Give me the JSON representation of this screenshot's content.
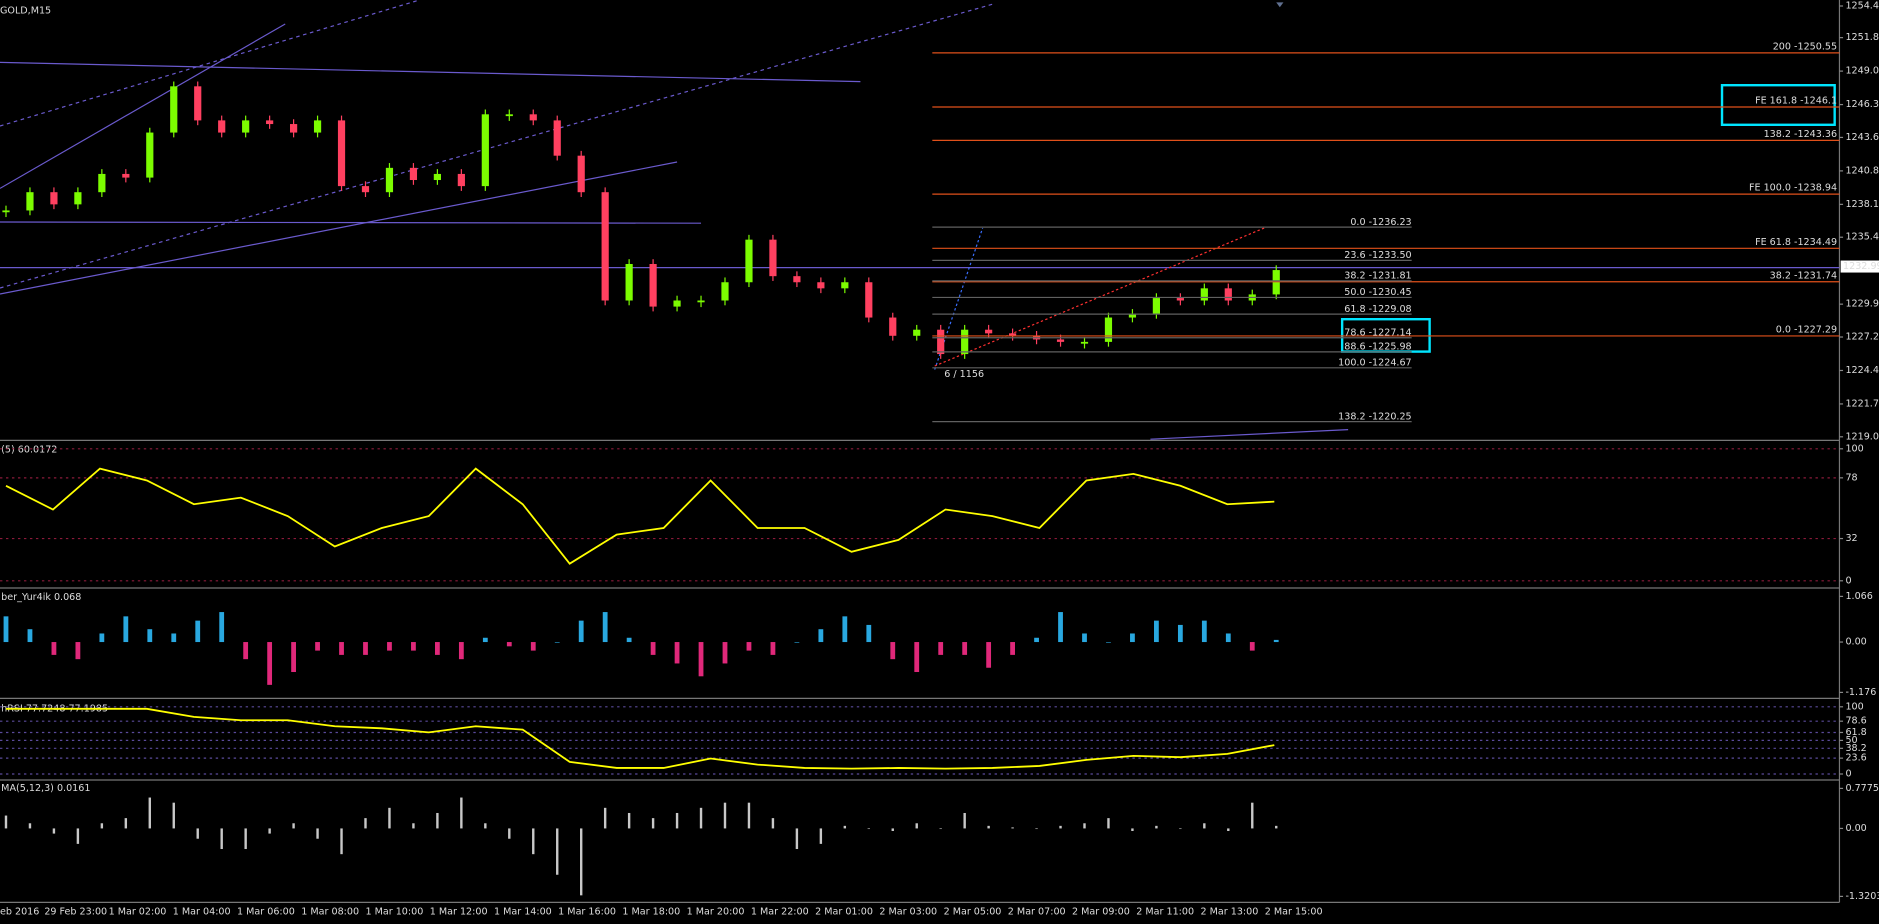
{
  "header": {
    "symbol": "GOLD,M15"
  },
  "main_chart": {
    "ylim": [
      1219,
      1254.4
    ],
    "yticks": [
      {
        "value": 1254.4,
        "label": "1254.40"
      },
      {
        "value": 1251.8,
        "label": "1251.80"
      },
      {
        "value": 1249.05,
        "label": "1249.05"
      },
      {
        "value": 1246.3,
        "label": "1246.30"
      },
      {
        "value": 1243.6,
        "label": "1243.60"
      },
      {
        "value": 1240.85,
        "label": "1240.85"
      },
      {
        "value": 1238.1,
        "label": "1238.10"
      },
      {
        "value": 1235.4,
        "label": "1235.40"
      },
      {
        "value": 1229.9,
        "label": "1229.90"
      },
      {
        "value": 1227.2,
        "label": "1227.20"
      },
      {
        "value": 1224.45,
        "label": "1224.45"
      },
      {
        "value": 1221.7,
        "label": "1221.70"
      },
      {
        "value": 1219,
        "label": "1219.00"
      }
    ],
    "closes": [
      1237.6,
      1239.1,
      1238.1,
      1239.1,
      1240.6,
      1240.3,
      1244.0,
      1247.8,
      1245.0,
      1244.0,
      1245.0,
      1244.7,
      1244.0,
      1245.0,
      1239.6,
      1239.1,
      1241.1,
      1240.1,
      1240.6,
      1239.6,
      1245.5,
      1245.5,
      1245.0,
      1242.1,
      1239.1,
      1230.2,
      1233.2,
      1229.7,
      1230.2,
      1230.2,
      1231.7,
      1235.2,
      1232.2,
      1231.7,
      1231.2,
      1231.7,
      1228.8,
      1227.3,
      1227.8,
      1225.8,
      1227.8,
      1227.5,
      1227.3,
      1227.0,
      1226.8,
      1226.8,
      1228.8,
      1229.1,
      1230.4,
      1230.2,
      1231.2,
      1230.2,
      1230.7,
      1232.7
    ],
    "current_price": {
      "value": 1232.99,
      "label": "1232.99"
    },
    "fib_targets": [
      {
        "label": "200 -1250.55",
        "price": 1250.55
      },
      {
        "label": "FE 161.8 -1246.1",
        "price": 1246.1
      },
      {
        "label": "138.2 -1243.36",
        "price": 1243.36
      },
      {
        "label": "FE 100.0 -1238.94",
        "price": 1238.94
      },
      {
        "label": "FE 61.8 -1234.49",
        "price": 1234.49
      },
      {
        "label": "38.2 -1231.74",
        "price": 1231.74
      },
      {
        "label": "0.0 -1227.29",
        "price": 1227.29
      }
    ],
    "fib_retracements": [
      {
        "label": "0.0 -1236.23",
        "price": 1236.23
      },
      {
        "label": "23.6 -1233.50",
        "price": 1233.5
      },
      {
        "label": "38.2 -1231.81",
        "price": 1231.81
      },
      {
        "label": "50.0 -1230.45",
        "price": 1230.45
      },
      {
        "label": "61.8 -1229.08",
        "price": 1229.08
      },
      {
        "label": "78.6 -1227.14",
        "price": 1227.14
      },
      {
        "label": "88.6 -1225.98",
        "price": 1225.98
      },
      {
        "label": "100.0 -1224.67",
        "price": 1224.67
      },
      {
        "label": "138.2 -1220.25",
        "price": 1220.25
      }
    ],
    "annotation": "6 / 1156"
  },
  "stochastic": {
    "label": "(5) 60.0172",
    "ylim": [
      0,
      100
    ],
    "yticks": [
      100,
      78,
      32,
      0
    ],
    "values": [
      72,
      54,
      85,
      76,
      58,
      63,
      49,
      26,
      40,
      49,
      85,
      58,
      13,
      35,
      40,
      76,
      40,
      40,
      22,
      31,
      54,
      49,
      40,
      76,
      81,
      72,
      58,
      60
    ]
  },
  "histogram": {
    "label": "ber_Yur4ik 0.068",
    "ylim": [
      -1.176,
      1.066
    ],
    "yticks": [
      {
        "value": 1.066,
        "label": "1.066"
      },
      {
        "value": 0,
        "label": "0.00"
      },
      {
        "value": -1.176,
        "label": "-1.176"
      }
    ],
    "values": [
      0.6,
      0.3,
      -0.3,
      -0.4,
      0.2,
      0.6,
      0.3,
      0.2,
      0.5,
      0.7,
      -0.4,
      -1.0,
      -0.7,
      -0.2,
      -0.3,
      -0.3,
      -0.2,
      -0.2,
      -0.3,
      -0.4,
      0.1,
      -0.1,
      -0.2,
      0.0,
      0.5,
      0.7,
      0.1,
      -0.3,
      -0.5,
      -0.8,
      -0.5,
      -0.2,
      -0.3,
      0.0,
      0.3,
      0.6,
      0.4,
      -0.4,
      -0.7,
      -0.3,
      -0.3,
      -0.6,
      -0.3,
      0.1,
      0.7,
      0.2,
      0.0,
      0.2,
      0.5,
      0.4,
      0.5,
      0.2,
      -0.2,
      0.05
    ]
  },
  "rsi": {
    "label": "hRSI 77.7248 77.1985",
    "ylim": [
      0,
      100
    ],
    "yticks": [
      100,
      78.6,
      61.8,
      50,
      38.2,
      23.6,
      0
    ],
    "values": [
      97,
      97,
      97,
      97,
      85,
      80,
      80,
      71,
      68,
      62,
      71,
      66,
      18,
      9,
      9,
      23,
      14,
      9,
      8,
      9,
      8,
      9,
      12,
      21,
      27,
      25,
      30,
      43
    ]
  },
  "macd": {
    "label": "MA(5,12,3) 0.0161",
    "ylim": [
      -1.3203,
      0.7775
    ],
    "yticks": [
      {
        "value": 0.7775,
        "label": "0.7775"
      },
      {
        "value": 0,
        "label": "0.00"
      },
      {
        "value": -1.3203,
        "label": "-1.3203"
      }
    ],
    "values": [
      0.25,
      0.1,
      -0.1,
      -0.3,
      0.1,
      0.2,
      0.6,
      0.5,
      -0.2,
      -0.4,
      -0.4,
      -0.1,
      0.1,
      -0.2,
      -0.5,
      0.2,
      0.4,
      0.1,
      0.3,
      0.6,
      0.1,
      -0.2,
      -0.5,
      -0.9,
      -1.3,
      0.4,
      0.3,
      0.2,
      0.3,
      0.4,
      0.5,
      0.5,
      0.2,
      -0.4,
      -0.3,
      0.05,
      0.0,
      -0.05,
      0.1,
      0.0,
      0.3,
      0.05,
      0.02,
      0.0,
      0.05,
      0.1,
      0.2,
      -0.05,
      0.05,
      0.0,
      0.1,
      -0.05,
      0.5,
      0.05
    ]
  },
  "time_axis": [
    "eb 2016",
    "29 Feb 23:00",
    "1 Mar 02:00",
    "1 Mar 04:00",
    "1 Mar 06:00",
    "1 Mar 08:00",
    "1 Mar 10:00",
    "1 Mar 12:00",
    "1 Mar 14:00",
    "1 Mar 16:00",
    "1 Mar 18:00",
    "1 Mar 20:00",
    "1 Mar 22:00",
    "2 Mar 01:00",
    "2 Mar 03:00",
    "2 Mar 05:00",
    "2 Mar 07:00",
    "2 Mar 09:00",
    "2 Mar 11:00",
    "2 Mar 13:00",
    "2 Mar 15:00"
  ]
}
